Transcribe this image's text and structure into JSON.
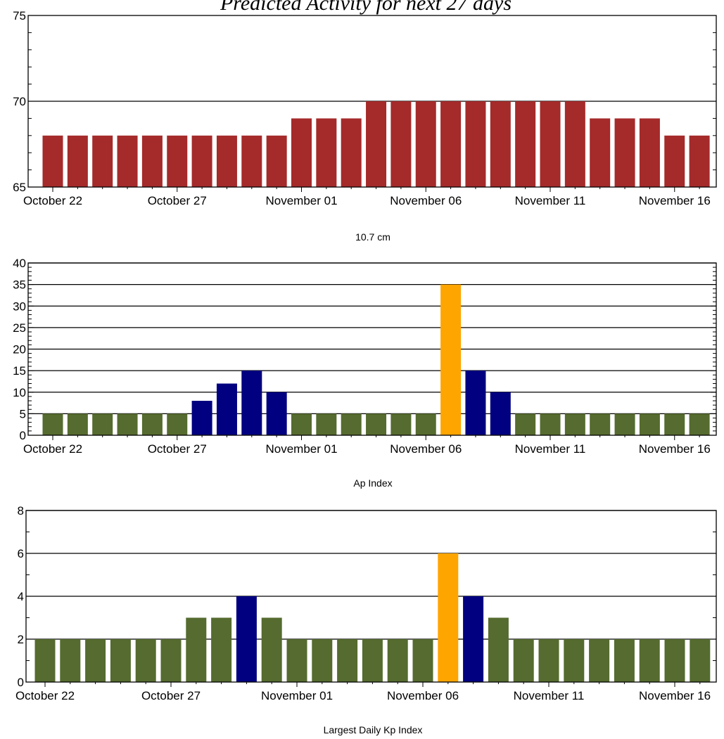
{
  "page_title": "Predicted Activity for next 27 days",
  "colors": {
    "flux_bar": "#A52A2A",
    "quiet": "#556B2F",
    "active": "#000080",
    "storm": "#FFA500",
    "grid": "#000000",
    "background": "#FFFFFF"
  },
  "chart_data": [
    {
      "type": "bar",
      "title": "10.7 cm",
      "xlabel": "",
      "ylabel": "",
      "ylim": [
        65,
        75
      ],
      "major_ticks": [
        65,
        70,
        75
      ],
      "minor_step": 1,
      "gridlines": [
        70
      ],
      "date_labels": [
        "October 22",
        "October 27",
        "November 01",
        "November 06",
        "November 11",
        "November 16"
      ],
      "date_label_every": 5,
      "categories": [
        "Oct 22",
        "Oct 23",
        "Oct 24",
        "Oct 25",
        "Oct 26",
        "Oct 27",
        "Oct 28",
        "Oct 29",
        "Oct 30",
        "Oct 31",
        "Nov 01",
        "Nov 02",
        "Nov 03",
        "Nov 04",
        "Nov 05",
        "Nov 06",
        "Nov 07",
        "Nov 08",
        "Nov 09",
        "Nov 10",
        "Nov 11",
        "Nov 12",
        "Nov 13",
        "Nov 14",
        "Nov 15",
        "Nov 16",
        "Nov 17"
      ],
      "values": [
        68,
        68,
        68,
        68,
        68,
        68,
        68,
        68,
        68,
        68,
        69,
        69,
        69,
        70,
        70,
        70,
        70,
        70,
        70,
        70,
        70,
        70,
        69,
        69,
        69,
        68,
        68
      ]
    },
    {
      "type": "bar",
      "title": "Ap Index",
      "xlabel": "",
      "ylabel": "",
      "ylim": [
        0,
        40
      ],
      "major_ticks": [
        0,
        5,
        10,
        15,
        20,
        25,
        30,
        35,
        40
      ],
      "minor_step": 1,
      "gridlines": [
        5,
        10,
        15,
        20,
        25,
        30,
        35,
        40
      ],
      "date_labels": [
        "October 22",
        "October 27",
        "November 01",
        "November 06",
        "November 11",
        "November 16"
      ],
      "date_label_every": 5,
      "categories": [
        "Oct 22",
        "Oct 23",
        "Oct 24",
        "Oct 25",
        "Oct 26",
        "Oct 27",
        "Oct 28",
        "Oct 29",
        "Oct 30",
        "Oct 31",
        "Nov 01",
        "Nov 02",
        "Nov 03",
        "Nov 04",
        "Nov 05",
        "Nov 06",
        "Nov 07",
        "Nov 08",
        "Nov 09",
        "Nov 10",
        "Nov 11",
        "Nov 12",
        "Nov 13",
        "Nov 14",
        "Nov 15",
        "Nov 16",
        "Nov 17"
      ],
      "values": [
        5,
        5,
        5,
        5,
        5,
        5,
        8,
        12,
        15,
        10,
        5,
        5,
        5,
        5,
        5,
        5,
        35,
        15,
        10,
        5,
        5,
        5,
        5,
        5,
        5,
        5,
        5
      ],
      "levels": [
        "quiet",
        "quiet",
        "quiet",
        "quiet",
        "quiet",
        "quiet",
        "active",
        "active",
        "active",
        "active",
        "quiet",
        "quiet",
        "quiet",
        "quiet",
        "quiet",
        "quiet",
        "storm",
        "active",
        "active",
        "quiet",
        "quiet",
        "quiet",
        "quiet",
        "quiet",
        "quiet",
        "quiet",
        "quiet"
      ]
    },
    {
      "type": "bar",
      "title": "Largest Daily Kp Index",
      "xlabel": "",
      "ylabel": "",
      "ylim": [
        0,
        8
      ],
      "major_ticks": [
        0,
        2,
        4,
        6,
        8
      ],
      "minor_step": 1,
      "gridlines": [
        2,
        4,
        6,
        8
      ],
      "date_labels": [
        "October 22",
        "October 27",
        "November 01",
        "November 06",
        "November 11",
        "November 16"
      ],
      "date_label_every": 5,
      "categories": [
        "Oct 22",
        "Oct 23",
        "Oct 24",
        "Oct 25",
        "Oct 26",
        "Oct 27",
        "Oct 28",
        "Oct 29",
        "Oct 30",
        "Oct 31",
        "Nov 01",
        "Nov 02",
        "Nov 03",
        "Nov 04",
        "Nov 05",
        "Nov 06",
        "Nov 07",
        "Nov 08",
        "Nov 09",
        "Nov 10",
        "Nov 11",
        "Nov 12",
        "Nov 13",
        "Nov 14",
        "Nov 15",
        "Nov 16",
        "Nov 17"
      ],
      "values": [
        2,
        2,
        2,
        2,
        2,
        2,
        3,
        3,
        4,
        3,
        2,
        2,
        2,
        2,
        2,
        2,
        6,
        4,
        3,
        2,
        2,
        2,
        2,
        2,
        2,
        2,
        2
      ],
      "levels": [
        "quiet",
        "quiet",
        "quiet",
        "quiet",
        "quiet",
        "quiet",
        "quiet",
        "quiet",
        "active",
        "quiet",
        "quiet",
        "quiet",
        "quiet",
        "quiet",
        "quiet",
        "quiet",
        "storm",
        "active",
        "quiet",
        "quiet",
        "quiet",
        "quiet",
        "quiet",
        "quiet",
        "quiet",
        "quiet",
        "quiet"
      ]
    }
  ]
}
